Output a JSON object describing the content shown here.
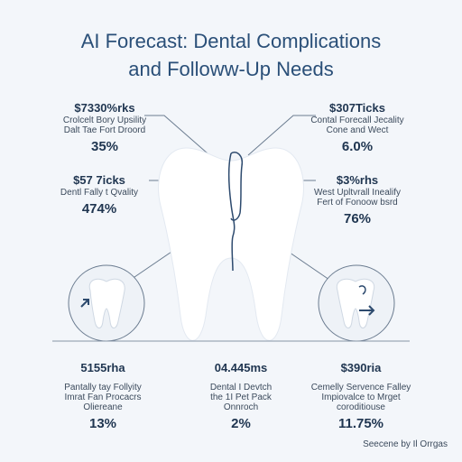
{
  "title": {
    "line1": "AI Forecast: Dental Complications",
    "line2": "and Followw-Up Needs"
  },
  "stats": [
    {
      "value": "$7330%rks",
      "line1": "Crolcelt Bory Upsility",
      "line2": "Dalt Tae Fort Droord",
      "pct": "35%"
    },
    {
      "value": "$307Ticks",
      "line1": "Contal Forecall Jecality",
      "line2": "Cone and Wect",
      "pct": "6.0%"
    },
    {
      "value": "$57 7icks",
      "line1": "Dentl Fally t Qvality",
      "line2": "",
      "pct": "474%"
    },
    {
      "value": "$3%rhs",
      "line1": "West Upltvrall Inealify",
      "line2": "Fert of Fonoow bsrd",
      "pct": "76%"
    },
    {
      "value": "5155rha",
      "line1": "Pantally tay Follyity",
      "line2": "Imrat Fan Procacrs",
      "line3": "Oliereane",
      "pct": "13%"
    },
    {
      "value": "04.445ms",
      "line1": "Dental I Devtch",
      "line2": "the 1I Pet Pack",
      "line3": "Onnroch",
      "pct": "2%"
    },
    {
      "value": "$390ria",
      "line1": "Cemelly Servence Falley",
      "line2": "Impiovalce to Mrget",
      "line3": "coroditiouse",
      "pct": "11.75%"
    }
  ],
  "source": "Seecene by Il Orrgas",
  "colors": {
    "line": "#6b7c90",
    "tooth_outline": "#2d4a6e",
    "tooth_fill": "#ffffff",
    "arrow": "#2d4a6e"
  },
  "icons": [
    "tooth-icon",
    "arrow-icon"
  ]
}
